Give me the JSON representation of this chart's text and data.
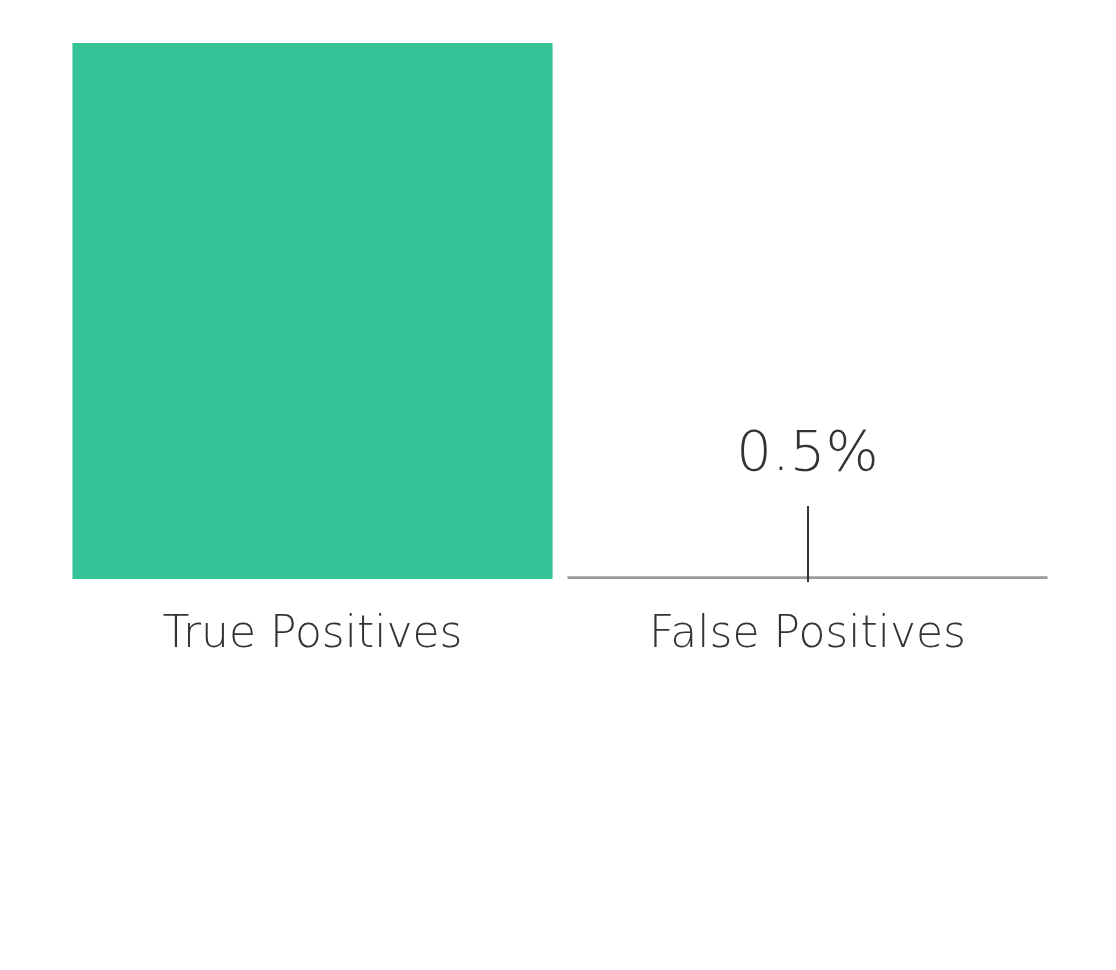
{
  "chart_data": {
    "type": "bar",
    "categories": [
      "True Positives",
      "False Positives"
    ],
    "values": [
      99.5,
      0.5
    ],
    "colors": [
      "#36c398",
      "#999999"
    ],
    "value_labels": [
      null,
      "0.5%"
    ]
  }
}
